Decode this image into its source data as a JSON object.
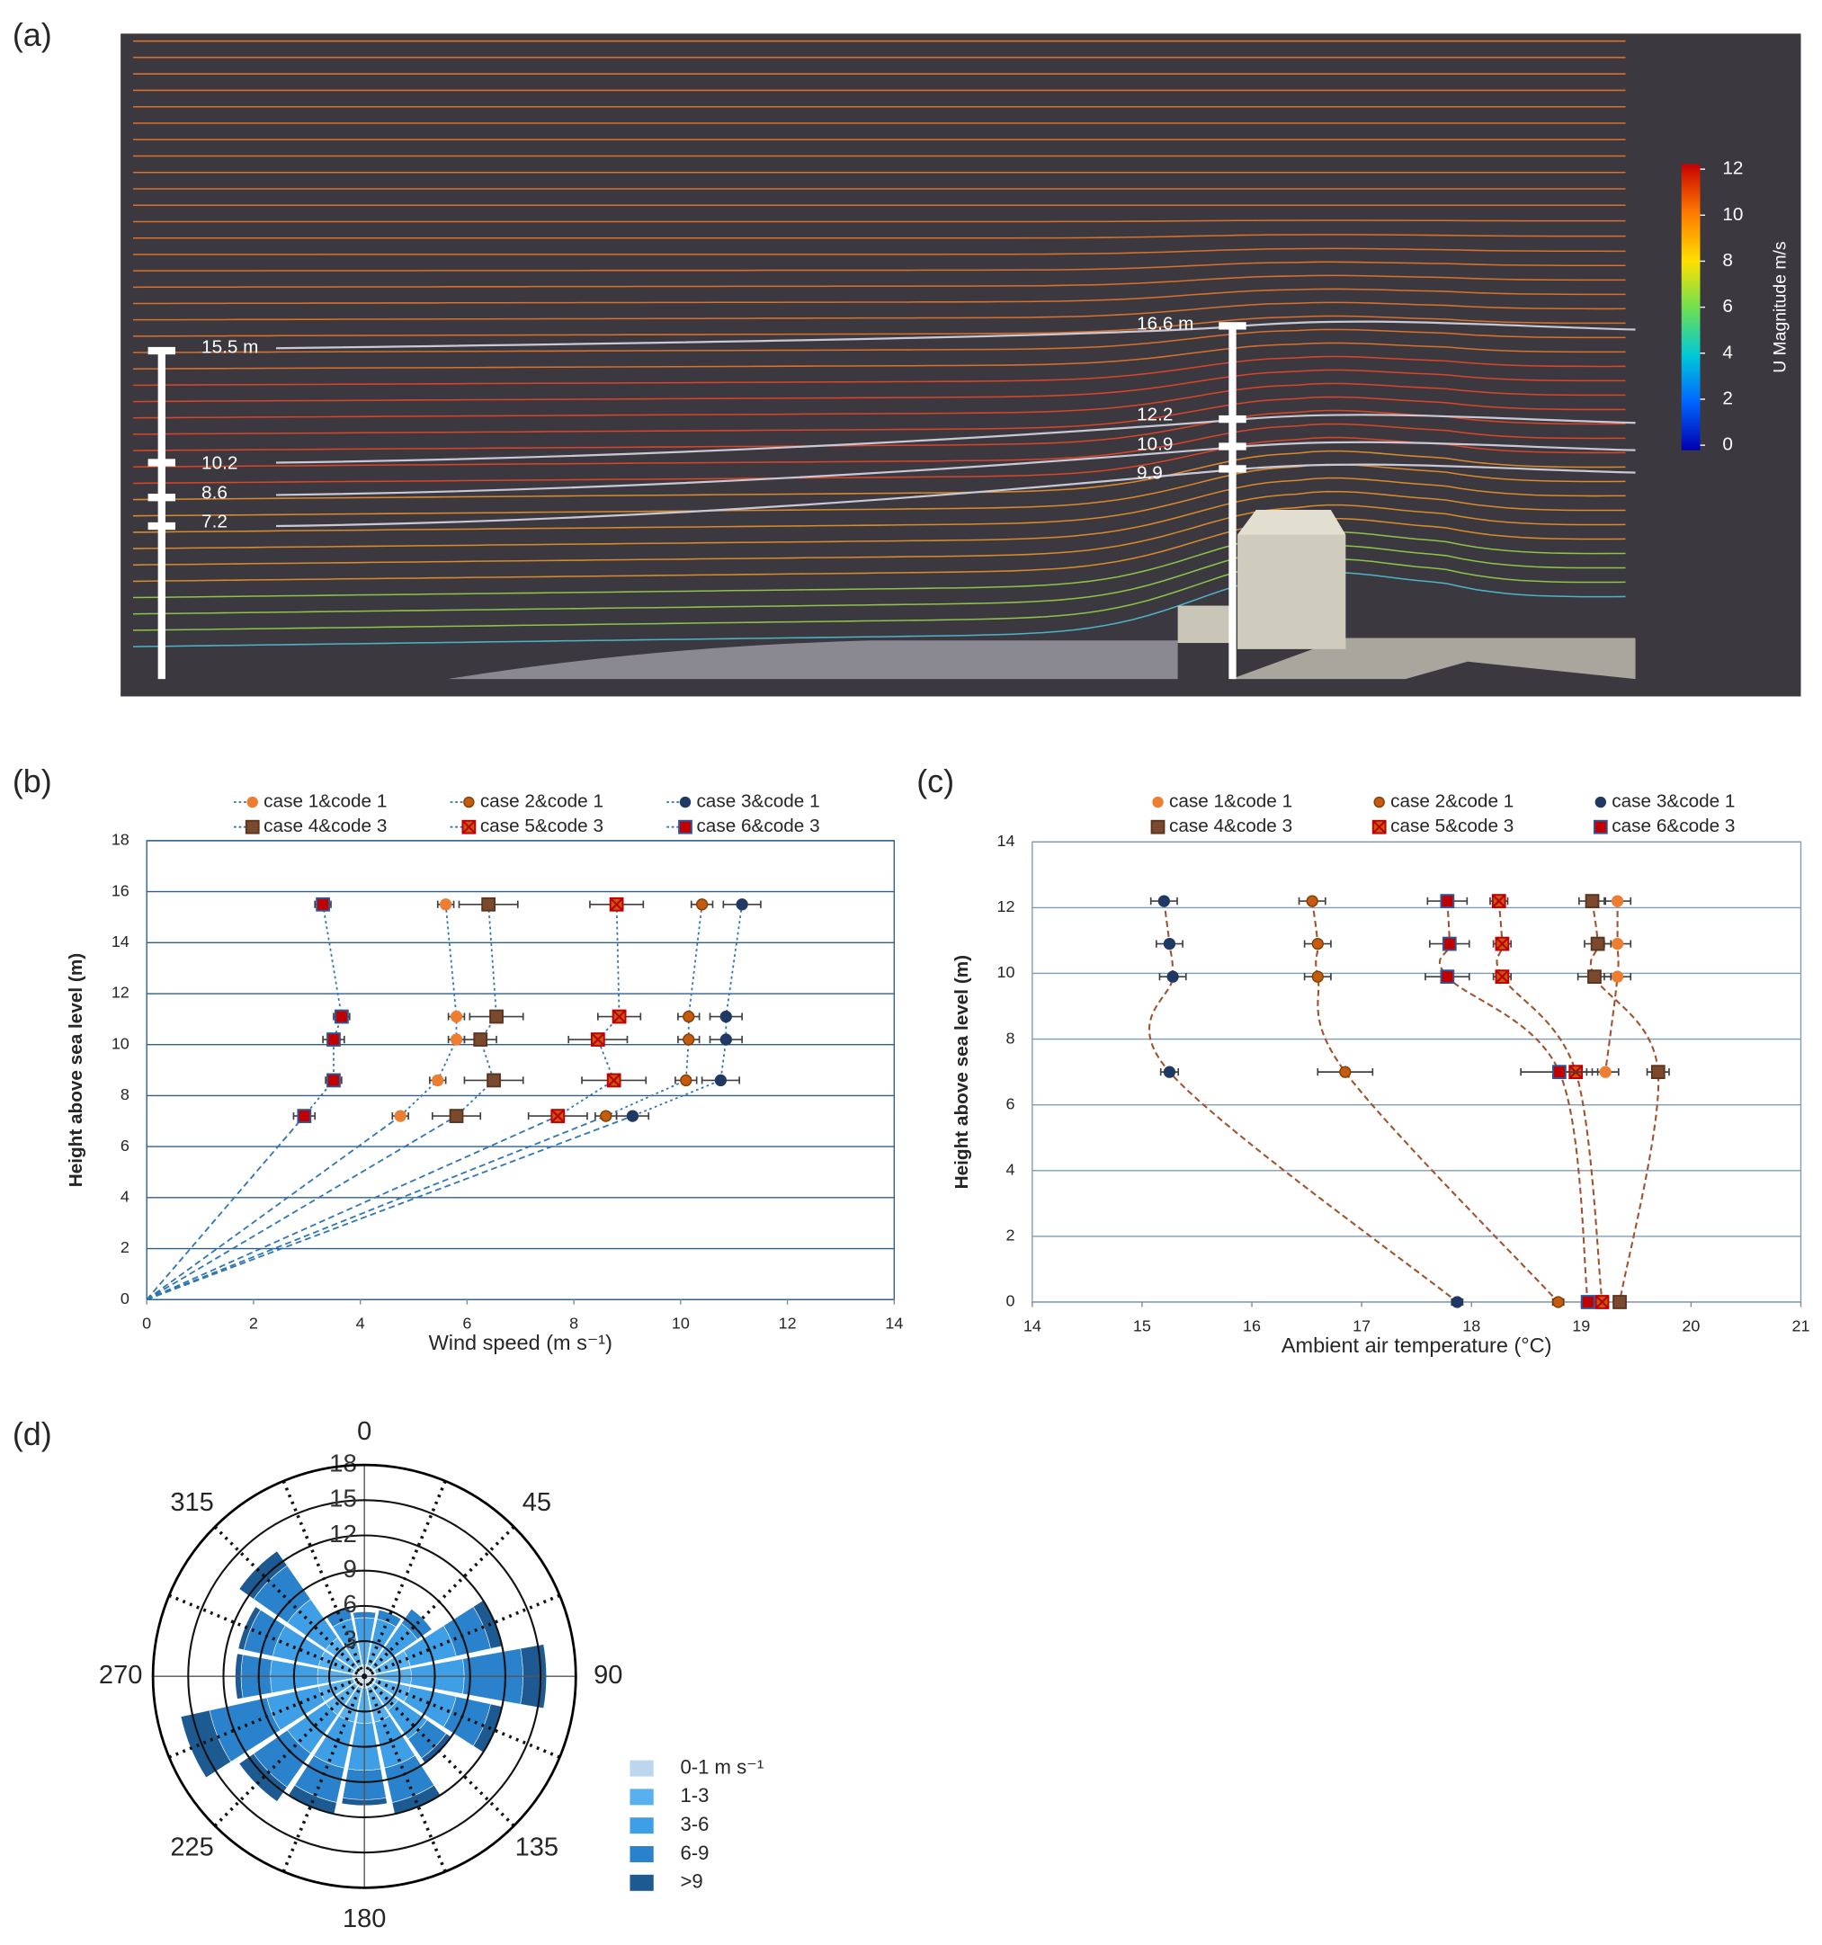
{
  "chart_data": [
    {
      "type": "streamline",
      "panel_label": "(a)",
      "colorbar_label": "U Magnitude m/s",
      "clim": [
        0,
        12
      ],
      "cticks": [
        0,
        2,
        4,
        6,
        8,
        10,
        12
      ],
      "mast_labels": [
        [
          "15.5 m",
          "10.2",
          "8.6",
          "7.2"
        ],
        [
          "16.6 m",
          "12.2",
          "10.9",
          "9.9"
        ]
      ]
    },
    {
      "type": "profile",
      "panel_label": "(b)",
      "xlabel": "Wind speed (m s⁻¹)",
      "ylabel": "Height above sea level (m)",
      "xlim": [
        0,
        14
      ],
      "ylim": [
        0,
        18
      ],
      "xticks": [
        0,
        2,
        4,
        6,
        8,
        10,
        12,
        14
      ],
      "yticks": [
        0,
        2,
        4,
        6,
        8,
        10,
        12,
        14,
        16,
        18
      ],
      "grid": true,
      "grid_color": "#2f5f8a",
      "profile_line": "to-origin",
      "line_color": "#2e75b6",
      "heights": [
        15.5,
        11.1,
        10.2,
        8.6,
        7.2
      ],
      "series": [
        {
          "name": "case 1&code 1",
          "color": "#ed7d31",
          "edge": "#ed7d31",
          "marker": "circle",
          "values": [
            5.6,
            5.8,
            5.8,
            5.45,
            4.75
          ],
          "errors": [
            0.15,
            0.15,
            0.15,
            0.15,
            0.15
          ]
        },
        {
          "name": "case 2&code 1",
          "color": "#c55a11",
          "edge": "#7f3f00",
          "marker": "circle",
          "values": [
            10.4,
            10.15,
            10.15,
            10.1,
            8.6
          ],
          "errors": [
            0.2,
            0.2,
            0.2,
            0.2,
            0.2
          ]
        },
        {
          "name": "case 3&code 1",
          "color": "#203864",
          "edge": "#203864",
          "marker": "circle",
          "values": [
            11.15,
            10.85,
            10.85,
            10.75,
            9.1
          ],
          "errors": [
            0.35,
            0.3,
            0.3,
            0.35,
            0.3
          ]
        },
        {
          "name": "case 4&code 3",
          "color": "#7b4a2e",
          "edge": "#5a3520",
          "marker": "square",
          "values": [
            6.4,
            6.55,
            6.25,
            6.5,
            5.8
          ],
          "errors": [
            0.55,
            0.5,
            0.3,
            0.55,
            0.45
          ]
        },
        {
          "name": "case 5&code 3",
          "color": "#c55a11",
          "edge": "#c00000",
          "marker": "square-x",
          "values": [
            8.8,
            8.85,
            8.45,
            8.75,
            7.7
          ],
          "errors": [
            0.5,
            0.4,
            0.55,
            0.6,
            0.55
          ]
        },
        {
          "name": "case 6&code 3",
          "color": "#c00000",
          "edge": "#2f5597",
          "marker": "square",
          "values": [
            3.3,
            3.65,
            3.5,
            3.5,
            2.95
          ],
          "errors": [
            0.15,
            0.15,
            0.2,
            0.15,
            0.2
          ]
        }
      ]
    },
    {
      "type": "profile",
      "panel_label": "(c)",
      "xlabel": "Ambient air temperature (°C)",
      "ylabel": "Height above sea level (m)",
      "xlim": [
        14,
        21
      ],
      "ylim": [
        0,
        14
      ],
      "xticks": [
        14,
        15,
        16,
        17,
        18,
        19,
        20,
        21
      ],
      "yticks": [
        0,
        2,
        4,
        6,
        8,
        10,
        12,
        14
      ],
      "grid": true,
      "grid_color": "#7f9cb5",
      "profile_line": "curve",
      "line_color": "#a0522d",
      "heights": [
        12.2,
        10.9,
        9.9,
        7,
        0
      ],
      "series": [
        {
          "name": "case 1&code 1",
          "color": "#ed7d31",
          "edge": "#ed7d31",
          "marker": "circle",
          "values": [
            19.33,
            19.33,
            19.33,
            19.22,
            null
          ],
          "errors": [
            0.12,
            0.12,
            0.12,
            0.12,
            null
          ]
        },
        {
          "name": "case 2&code 1",
          "color": "#c55a11",
          "edge": "#7f3f00",
          "marker": "circle",
          "values": [
            16.55,
            16.6,
            16.6,
            16.85,
            18.79
          ],
          "errors": [
            0.12,
            0.12,
            0.12,
            0.25,
            0.05
          ]
        },
        {
          "name": "case 3&code 1",
          "color": "#203864",
          "edge": "#203864",
          "marker": "circle",
          "values": [
            15.2,
            15.25,
            15.28,
            15.25,
            17.87
          ],
          "errors": [
            0.12,
            0.12,
            0.12,
            0.08,
            0.05
          ]
        },
        {
          "name": "case 4&code 3",
          "color": "#7b4a2e",
          "edge": "#5a3520",
          "marker": "square",
          "values": [
            19.1,
            19.15,
            19.12,
            19.7,
            19.35
          ],
          "errors": [
            0.12,
            0.12,
            0.15,
            0.1,
            0.05
          ]
        },
        {
          "name": "case 5&code 3",
          "color": "#c55a11",
          "edge": "#c00000",
          "marker": "square-x",
          "values": [
            18.25,
            18.28,
            18.28,
            18.95,
            19.19
          ],
          "errors": [
            0.08,
            0.08,
            0.08,
            0.1,
            0.05
          ]
        },
        {
          "name": "case 6&code 3",
          "color": "#c00000",
          "edge": "#2f5597",
          "marker": "square",
          "values": [
            17.78,
            17.8,
            17.78,
            18.8,
            19.06
          ],
          "errors": [
            0.18,
            0.18,
            0.2,
            0.35,
            0.05
          ]
        }
      ]
    },
    {
      "type": "windrose",
      "panel_label": "(d)",
      "categories": [
        0,
        null,
        45,
        null,
        90,
        null,
        135,
        null,
        180,
        null,
        225,
        null,
        270,
        null,
        315,
        null
      ],
      "rlim": [
        0,
        18
      ],
      "rticks": [
        3,
        6,
        9,
        12,
        15,
        18
      ],
      "series": [
        {
          "name": "0-1 m s⁻¹",
          "color": "#bcd6ee",
          "values": [
            1,
            1,
            1,
            1,
            1,
            1,
            1,
            1,
            1,
            1,
            1,
            1,
            1,
            1,
            1,
            1
          ]
        },
        {
          "name": "1-3",
          "color": "#59b0ef",
          "values": [
            2,
            2,
            2,
            3,
            3,
            3,
            2.5,
            3,
            3,
            3,
            3,
            3,
            3,
            3,
            3,
            2
          ]
        },
        {
          "name": "3-6",
          "color": "#3f9fe6",
          "values": [
            2,
            2,
            2.5,
            4,
            4.5,
            4,
            3,
            4,
            4,
            4,
            4,
            4.5,
            4,
            4,
            4,
            2
          ]
        },
        {
          "name": "6-9",
          "color": "#2b82cc",
          "values": [
            0.5,
            0.8,
            1.5,
            3,
            5,
            3,
            2,
            3,
            2.5,
            3,
            3.5,
            5,
            2.5,
            2.5,
            3.5,
            1
          ]
        },
        {
          "name": ">9",
          "color": "#1d5a92",
          "values": [
            0,
            0,
            0,
            1,
            2,
            1,
            0.5,
            1,
            0.5,
            1,
            1.5,
            2.5,
            0.5,
            0.5,
            1.5,
            0
          ]
        }
      ]
    }
  ]
}
